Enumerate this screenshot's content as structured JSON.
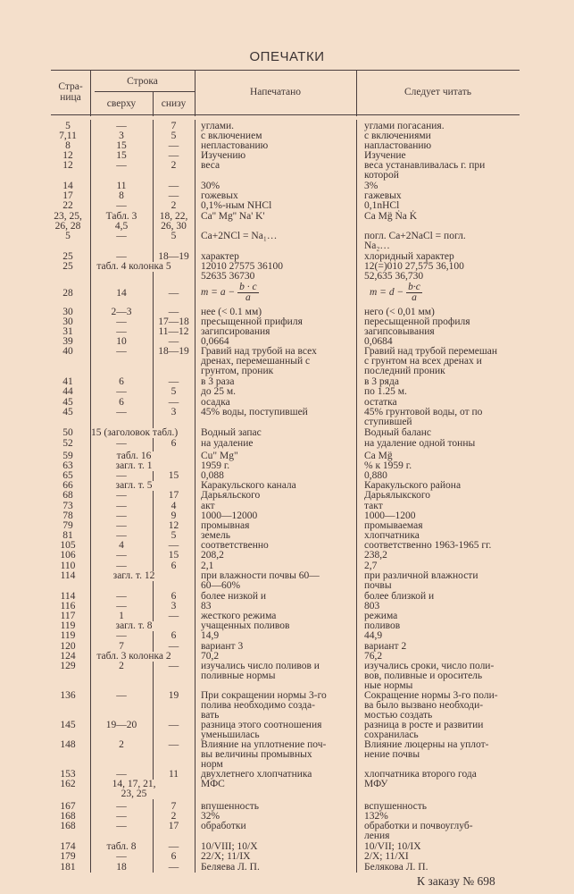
{
  "title": "ОПЕЧАТКИ",
  "header": {
    "page": "Стра-\nница",
    "line": "Строка",
    "from_top": "сверху",
    "from_bottom": "снизу",
    "printed": "Напечатано",
    "correct": "Следует читать"
  },
  "rows": [
    {
      "page": "5",
      "top": "—",
      "bottom": "7",
      "printed": "углами.",
      "correct": "углами погасания."
    },
    {
      "page": "7,11",
      "top": "3",
      "bottom": "5",
      "printed": "с включением",
      "correct": "с включениями"
    },
    {
      "page": "8",
      "top": "15",
      "bottom": "—",
      "printed": "непластованию",
      "correct": "напластованию"
    },
    {
      "page": "12",
      "top": "15",
      "bottom": "—",
      "printed": "Изучению",
      "correct": "Изучение"
    },
    {
      "page": "12",
      "top": "—",
      "bottom": "2",
      "printed": "веса",
      "correct": "веса устанавливалась г. при\nкоторой"
    },
    {
      "page": "14",
      "top": "11",
      "bottom": "—",
      "printed": "30%",
      "correct": "3%"
    },
    {
      "page": "17",
      "top": "8",
      "bottom": "—",
      "printed": "гожевых",
      "correct": "гажевых"
    },
    {
      "page": "22",
      "top": "—",
      "bottom": "2",
      "printed": "0,1%-ным NHCl",
      "correct": "0,1nHCl"
    },
    {
      "page": "23, 25,\n26, 28",
      "top": "Табл. 3\n4,5",
      "bottom": "18, 22,\n26, 30",
      "printed": "Ca'' Mg'' Na' K'",
      "correct": "Ca Mg̈ Ṅa K̇"
    },
    {
      "page": "5",
      "top": "—",
      "bottom": "5",
      "printed": "Ca+2NCl = Na₁…",
      "correct": "погл. Ca+2NaCl = погл.\nNa₂…"
    },
    {
      "page": "25",
      "top": "—",
      "bottom": "18—19",
      "printed": "характер",
      "correct": "хлоридный характер"
    },
    {
      "page": "25",
      "top": "табл. 4 колонка 5",
      "bottom": "",
      "printed": "12010 27575 36100\n52635 36730",
      "correct": "12(=)010 27,575 36,100\n52,635 36,730"
    },
    {
      "page": "28",
      "top": "14",
      "bottom": "—",
      "printed_formula": {
        "lhs": "m = a −",
        "num": "b · c",
        "den": "a"
      },
      "correct_formula": {
        "lhs": "m = d −",
        "num": "b·c",
        "den": "a"
      }
    },
    {
      "page": "30",
      "top": "2—3",
      "bottom": "—",
      "printed": "нее (< 0.1 мм)",
      "correct": "него (< 0,01 мм)"
    },
    {
      "page": "30",
      "top": "—",
      "bottom": "17—18",
      "printed": "пресыщенной прифиля",
      "correct": "пересыщенной профиля"
    },
    {
      "page": "31",
      "top": "—",
      "bottom": "11—12",
      "printed": "загипсирования",
      "correct": "загипсовывания"
    },
    {
      "page": "39",
      "top": "10",
      "bottom": "—",
      "printed": "0,0664",
      "correct": "0,0684"
    },
    {
      "page": "40",
      "top": "—",
      "bottom": "18—19",
      "printed": "Гравий над трубой на всех\nдренах, перемешанный с\nгрунтом, проник",
      "correct": "Гравий над трубой перемешан\nс грунтом на всех дренах и\nпоследний проник"
    },
    {
      "page": "41",
      "top": "6",
      "bottom": "—",
      "printed": "в 3 раза",
      "correct": "в 3 ряда"
    },
    {
      "page": "44",
      "top": "—",
      "bottom": "5",
      "printed": "до 25 м.",
      "correct": "по 1.25 м."
    },
    {
      "page": "45",
      "top": "6",
      "bottom": "—",
      "printed": "осадка",
      "correct": "остатка"
    },
    {
      "page": "45",
      "top": "—",
      "bottom": "3",
      "printed": "45% воды, поступившей",
      "correct": "45% грунтовой воды, от по\nступившей"
    },
    {
      "page": "50",
      "top": "15 (заголовок табл.)",
      "bottom": "",
      "printed": "Водный запас",
      "correct": "Водный баланс"
    },
    {
      "page": "52",
      "top": "—",
      "bottom": "6",
      "printed": "на удаление",
      "correct": "на удаление одной тонны"
    },
    {
      "page": "59",
      "top": "табл. 16",
      "bottom": "",
      "printed": "Cu\" Mg\"",
      "correct": "Ca Mg̈"
    },
    {
      "page": "63",
      "top": "загл. т. 1",
      "bottom": "",
      "printed": "1959 г.",
      "correct": "% к 1959 г."
    },
    {
      "page": "65",
      "top": "—",
      "bottom": "15",
      "printed": "0,088",
      "correct": "0,880"
    },
    {
      "page": "66",
      "top": "загл. т. 5",
      "bottom": "",
      "printed": "Каракульского канала",
      "correct": "Каракульского района"
    },
    {
      "page": "68",
      "top": "—",
      "bottom": "17",
      "printed": "Дарьяльского",
      "correct": "Дарьялыкского"
    },
    {
      "page": "73",
      "top": "—",
      "bottom": "4",
      "printed": "акт",
      "correct": "такт"
    },
    {
      "page": "78",
      "top": "—",
      "bottom": "9",
      "printed": "1000—12000",
      "correct": "1000—1200"
    },
    {
      "page": "79",
      "top": "—",
      "bottom": "12",
      "printed": "промывная",
      "correct": "промываемая"
    },
    {
      "page": "81",
      "top": "—",
      "bottom": "5",
      "printed": "земель",
      "correct": "хлопчатника"
    },
    {
      "page": "105",
      "top": "4",
      "bottom": "—",
      "printed": "соответственно",
      "correct": "соответственно 1963-1965 гг."
    },
    {
      "page": "106",
      "top": "—",
      "bottom": "15",
      "printed": "208,2",
      "correct": "238,2"
    },
    {
      "page": "110",
      "top": "—",
      "bottom": "6",
      "printed": "2,1",
      "correct": "2,7"
    },
    {
      "page": "114",
      "top": "загл. т. 12",
      "bottom": "",
      "printed": "при влажности почвы 60—\n60—60%",
      "correct": "при различной влажности\nпочвы"
    },
    {
      "page": "114",
      "top": "—",
      "bottom": "6",
      "printed": "более низкой и",
      "correct": "более близкой и"
    },
    {
      "page": "116",
      "top": "—",
      "bottom": "3",
      "printed": "83",
      "correct": "803"
    },
    {
      "page": "117",
      "top": "1",
      "bottom": "—",
      "printed": "жесткого режима",
      "correct": "режима"
    },
    {
      "page": "119",
      "top": "загл. т. 8",
      "bottom": "",
      "printed": "учащенных поливов",
      "correct": "поливов"
    },
    {
      "page": "119",
      "top": "—",
      "bottom": "6",
      "printed": "14,9",
      "correct": "44,9"
    },
    {
      "page": "120",
      "top": "7",
      "bottom": "—",
      "printed": "вариант 3",
      "correct": "вариант 2"
    },
    {
      "page": "124",
      "top": "табл. 3 колонка 2",
      "bottom": "",
      "printed": "70,2",
      "correct": "76,2"
    },
    {
      "page": "129",
      "top": "2",
      "bottom": "—",
      "printed": "изучались число поливов и\nполивные нормы",
      "correct": "изучались сроки, число поли-\nвов, поливные и ороситель\nные нормы"
    },
    {
      "page": "136",
      "top": "—",
      "bottom": "19",
      "printed": "При сокращении нормы 3-го\nполива необходимо созда-\nвать",
      "correct": "Сокращение нормы 3-го поли-\nва было вызвано необходи-\nмостью создать"
    },
    {
      "page": "145",
      "top": "19—20",
      "bottom": "—",
      "printed": "разница этого соотношения\nуменьшилась",
      "correct": "разница в росте и развитии\nсохранилась"
    },
    {
      "page": "148",
      "top": "2",
      "bottom": "—",
      "printed": "Влияние на уплотнение поч-\nвы величины промывных\nнорм",
      "correct": "Влияние люцерны на уплот-\nнение почвы"
    },
    {
      "page": "153",
      "top": "—",
      "bottom": "11",
      "printed": "двухлетнего хлопчатника",
      "correct": "хлопчатника второго года"
    },
    {
      "page": "162",
      "top": "14, 17, 21,\n23, 25",
      "bottom": "",
      "printed": "МФС",
      "correct": "МФУ"
    },
    {
      "page": "167",
      "top": "—",
      "bottom": "7",
      "printed": "впушенность",
      "correct": "вспушенность"
    },
    {
      "page": "168",
      "top": "—",
      "bottom": "2",
      "printed": "32%",
      "correct": "132%"
    },
    {
      "page": "168",
      "top": "—",
      "bottom": "17",
      "printed": "обработки",
      "correct": "обработки и почвоуглуб-\nления"
    },
    {
      "page": "174",
      "top": "табл. 8",
      "bottom": "—",
      "printed": "10/VIII; 10/X",
      "correct": "10/VII; 10/IX"
    },
    {
      "page": "179",
      "top": "—",
      "bottom": "6",
      "printed": "22/X; 11/IX",
      "correct": "2/X; 11/XI"
    },
    {
      "page": "181",
      "top": "18",
      "bottom": "—",
      "printed": "Беляева Л. П.",
      "correct": "Белякова Л. П."
    }
  ],
  "footer": "К заказу № 698"
}
